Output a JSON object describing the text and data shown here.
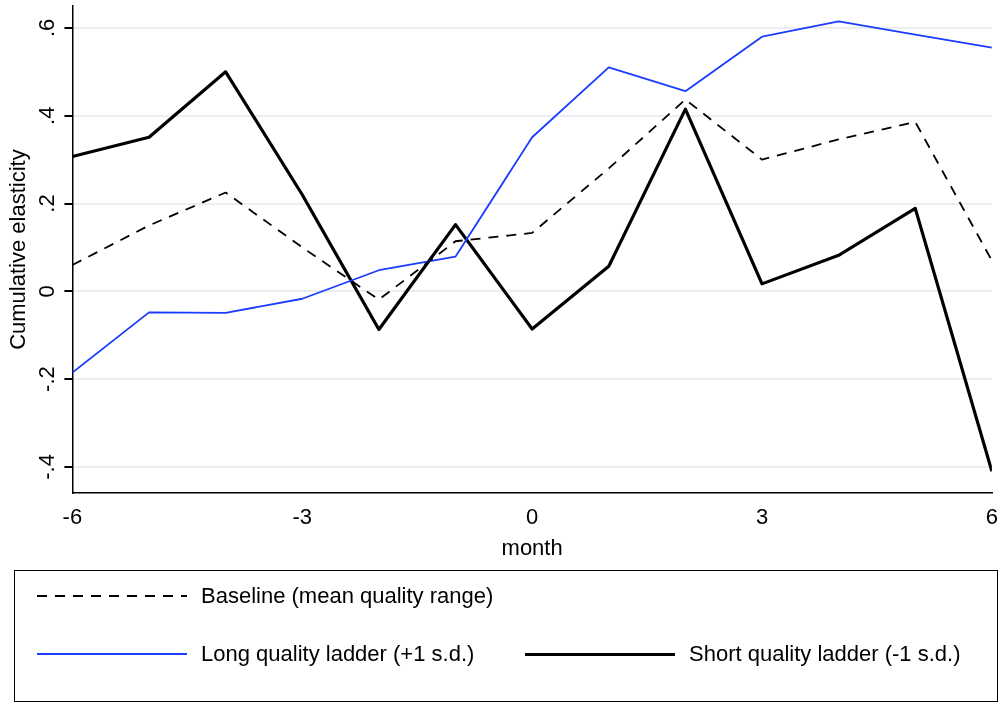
{
  "chart_data": {
    "type": "line",
    "xlabel": "month",
    "ylabel": "Cumulative elasticity",
    "x": [
      -6,
      -5,
      -4,
      -3,
      -2,
      -1,
      0,
      1,
      2,
      3,
      4,
      5,
      6
    ],
    "xlim": [
      -6,
      6
    ],
    "xticks": [
      -6,
      -3,
      0,
      3,
      6
    ],
    "ylim": [
      -0.46,
      0.65
    ],
    "yticks": [
      {
        "value": -0.4,
        "label": "-.4"
      },
      {
        "value": -0.2,
        "label": "-.2"
      },
      {
        "value": 0,
        "label": "0"
      },
      {
        "value": 0.2,
        "label": ".2"
      },
      {
        "value": 0.4,
        "label": ".4"
      },
      {
        "value": 0.6,
        "label": ".6"
      }
    ],
    "grid": "y",
    "legend": "bottom",
    "marker": "none",
    "series": [
      {
        "name": "Baseline (mean quality range)",
        "color": "#000000",
        "line_style": "dashed",
        "values": [
          0.06,
          0.15,
          0.225,
          0.1,
          -0.019,
          0.114,
          0.133,
          0.28,
          0.437,
          0.3,
          0.346,
          0.386,
          0.07
        ]
      },
      {
        "name": "Long quality ladder (+1 s.d.)",
        "color": "#1a3cff",
        "line_style": "solid",
        "values": [
          -0.185,
          -0.048,
          -0.049,
          -0.017,
          0.048,
          0.079,
          0.351,
          0.51,
          0.456,
          0.58,
          0.615,
          0.585,
          0.555
        ]
      },
      {
        "name": "Short quality ladder (-1 s.d.)",
        "color": "#000000",
        "line_style": "solid",
        "values": [
          0.307,
          0.351,
          0.5,
          0.22,
          -0.087,
          0.152,
          -0.086,
          0.057,
          0.415,
          0.017,
          0.082,
          0.189,
          -0.41
        ]
      }
    ]
  }
}
